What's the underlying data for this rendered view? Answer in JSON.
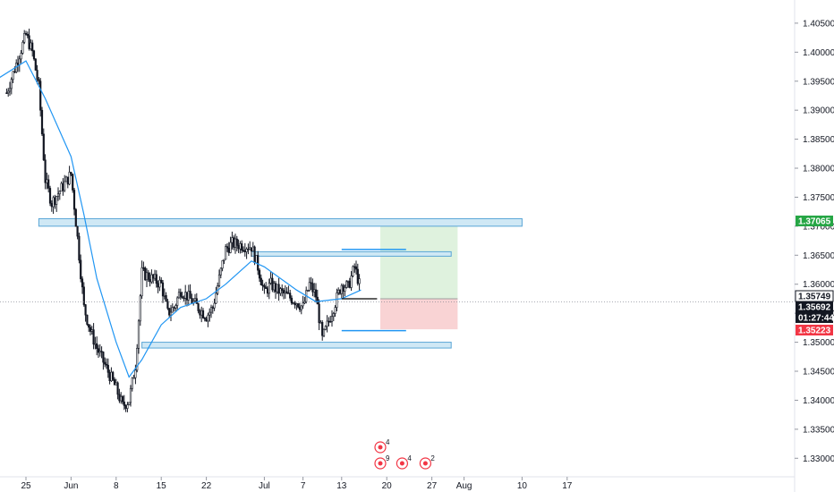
{
  "colors": {
    "candle": "#131722",
    "ma_line": "#2196f3",
    "zone_fill": "#cfe8f5",
    "zone_stroke": "#5aa6d6",
    "target_fill": "#dff2de",
    "stop_fill": "#f9d3d4",
    "green_tag": "#26a645",
    "red_tag": "#f23645",
    "axis_line": "#d1d4dc"
  },
  "icons": {
    "event_icon": "economic-event-icon",
    "flag_icon": "country-flag-icon"
  },
  "chart_data": {
    "type": "candlestick",
    "title": "",
    "xlabel": "",
    "ylabel": "",
    "ylim": [
      1.3275,
      1.4075
    ],
    "grid": false,
    "legend": "none",
    "y_ticks": [
      "1.40500",
      "1.40000",
      "1.39500",
      "1.39000",
      "1.38500",
      "1.38000",
      "1.37500",
      "1.37000",
      "1.36500",
      "1.36000",
      "1.35500",
      "1.35000",
      "1.34500",
      "1.34000",
      "1.33500",
      "1.33000"
    ],
    "y_tick_values": [
      1.405,
      1.4,
      1.395,
      1.39,
      1.385,
      1.38,
      1.375,
      1.37,
      1.365,
      1.36,
      1.355,
      1.35,
      1.345,
      1.34,
      1.335,
      1.33
    ],
    "x_ticks": [
      "25",
      "Jun",
      "8",
      "15",
      "22",
      "Jul",
      "7",
      "13",
      "20",
      "27",
      "Aug",
      "10",
      "17"
    ],
    "x_tick_dates": [
      "2020-05-25",
      "2020-06-01",
      "2020-06-08",
      "2020-06-15",
      "2020-06-22",
      "2020-07-01",
      "2020-07-07",
      "2020-07-13",
      "2020-07-20",
      "2020-07-27",
      "2020-08-01",
      "2020-08-10",
      "2020-08-17"
    ],
    "price_path": [
      [
        "2020-05-22",
        1.393
      ],
      [
        "2020-05-25",
        1.403
      ],
      [
        "2020-05-26",
        1.4
      ],
      [
        "2020-05-27",
        1.394
      ],
      [
        "2020-05-28",
        1.378
      ],
      [
        "2020-05-29",
        1.374
      ],
      [
        "2020-06-01",
        1.379
      ],
      [
        "2020-06-02",
        1.368
      ],
      [
        "2020-06-03",
        1.356
      ],
      [
        "2020-06-04",
        1.352
      ],
      [
        "2020-06-05",
        1.349
      ],
      [
        "2020-06-08",
        1.342
      ],
      [
        "2020-06-09",
        1.339
      ],
      [
        "2020-06-10",
        1.34
      ],
      [
        "2020-06-11",
        1.346
      ],
      [
        "2020-06-12",
        1.362
      ],
      [
        "2020-06-15",
        1.36
      ],
      [
        "2020-06-16",
        1.355
      ],
      [
        "2020-06-17",
        1.356
      ],
      [
        "2020-06-18",
        1.359
      ],
      [
        "2020-06-19",
        1.358
      ],
      [
        "2020-06-22",
        1.3545
      ],
      [
        "2020-06-23",
        1.356
      ],
      [
        "2020-06-24",
        1.361
      ],
      [
        "2020-06-25",
        1.366
      ],
      [
        "2020-06-26",
        1.367
      ],
      [
        "2020-06-29",
        1.3665
      ],
      [
        "2020-06-30",
        1.363
      ],
      [
        "2020-07-01",
        1.3585
      ],
      [
        "2020-07-02",
        1.36
      ],
      [
        "2020-07-03",
        1.359
      ],
      [
        "2020-07-06",
        1.357
      ],
      [
        "2020-07-07",
        1.356
      ],
      [
        "2020-07-08",
        1.36
      ],
      [
        "2020-07-09",
        1.358
      ],
      [
        "2020-07-10",
        1.3505
      ],
      [
        "2020-07-13",
        1.36
      ],
      [
        "2020-07-14",
        1.3595
      ],
      [
        "2020-07-15",
        1.363
      ],
      [
        "2020-07-16",
        1.359
      ]
    ],
    "moving_average": [
      [
        "2020-05-20",
        1.395
      ],
      [
        "2020-05-25",
        1.3985
      ],
      [
        "2020-05-28",
        1.392
      ],
      [
        "2020-06-01",
        1.382
      ],
      [
        "2020-06-03",
        1.372
      ],
      [
        "2020-06-05",
        1.361
      ],
      [
        "2020-06-08",
        1.35
      ],
      [
        "2020-06-10",
        1.344
      ],
      [
        "2020-06-12",
        1.347
      ],
      [
        "2020-06-15",
        1.353
      ],
      [
        "2020-06-18",
        1.356
      ],
      [
        "2020-06-22",
        1.3575
      ],
      [
        "2020-06-25",
        1.36
      ],
      [
        "2020-06-29",
        1.364
      ],
      [
        "2020-07-01",
        1.363
      ],
      [
        "2020-07-06",
        1.359
      ],
      [
        "2020-07-09",
        1.357
      ],
      [
        "2020-07-13",
        1.3575
      ],
      [
        "2020-07-16",
        1.359
      ]
    ],
    "zones": [
      {
        "from": "2020-05-27",
        "to": "2020-08-10",
        "low": 1.37,
        "high": 1.3713
      },
      {
        "from": "2020-06-29",
        "to": "2020-07-30",
        "low": 1.365,
        "high": 1.3656
      },
      {
        "from": "2020-06-12",
        "to": "2020-07-30",
        "low": 1.349,
        "high": 1.35
      }
    ],
    "levels": [
      {
        "from": "2020-07-13",
        "to": "2020-07-23",
        "price": 1.366
      },
      {
        "from": "2020-07-13",
        "to": "2020-07-23",
        "price": 1.352
      }
    ],
    "position": {
      "from": "2020-07-19",
      "to": "2020-07-31",
      "entry": 1.35749,
      "target": 1.37065,
      "stop": 1.35223
    },
    "price_tags": [
      {
        "label": "1.37065",
        "price": 1.37065,
        "style": "green"
      },
      {
        "label": "1.35749",
        "price": 1.35749,
        "style": "outline"
      },
      {
        "label": "1.35692",
        "price": 1.35692,
        "style": "dark"
      },
      {
        "label": "01:27:44",
        "price": 1.355,
        "style": "dark"
      },
      {
        "label": "1.35223",
        "price": 1.35223,
        "style": "red"
      }
    ],
    "events": [
      {
        "date": "2020-07-19",
        "count": "4",
        "row": 1
      },
      {
        "date": "2020-07-19",
        "count": "9",
        "row": 2
      },
      {
        "date": "2020-07-21",
        "count": "4",
        "row": 2
      },
      {
        "date": "2020-07-26",
        "count": "2",
        "row": 2
      }
    ]
  }
}
